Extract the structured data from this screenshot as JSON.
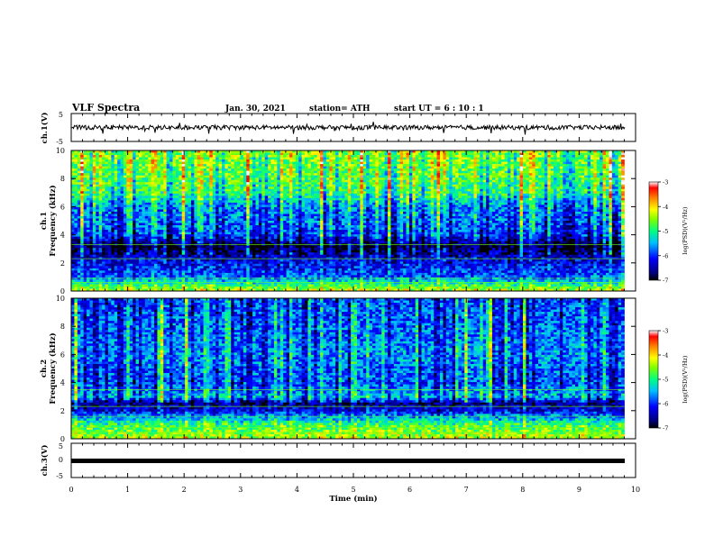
{
  "header": {
    "title": "VLF Spectra",
    "date": "Jan. 30, 2021",
    "station": "station= ATH",
    "start": "start  UT  =   6  : 10 : 1"
  },
  "colors": {
    "spectro_scale": [
      "#000066",
      "#0000c8",
      "#0066ff",
      "#00ccff",
      "#00ff99",
      "#66ff00",
      "#ffff00",
      "#ff9900",
      "#ff0000",
      "#ffffff"
    ]
  },
  "chart_data": [
    {
      "type": "line",
      "name": "ch1-waveform",
      "ylabel": "ch.1(V)",
      "xlim": [
        0,
        10
      ],
      "ylim": [
        -5,
        5
      ],
      "y_ticks": [
        "5",
        "-5"
      ],
      "baseline": 0,
      "note_values": "noisy signal around 0 V with amplitude about 1 V"
    },
    {
      "type": "heatmap",
      "name": "ch1-spectrogram",
      "ylabel_top": "ch.1",
      "ylabel": "Frequency (kHz)",
      "xlim": [
        0,
        10
      ],
      "ylim": [
        0,
        10
      ],
      "y_ticks": [
        "0",
        "2",
        "4",
        "6",
        "8",
        "10"
      ],
      "data_end_min": 9.8,
      "colorbar": {
        "label": "log(PSD)(V²/Hz)",
        "range": [
          -7,
          -3
        ],
        "ticks": [
          "-3",
          "-4",
          "-5",
          "-6",
          "-7"
        ]
      },
      "profile_khz": [
        [
          0,
          -4.2
        ],
        [
          1,
          -5.8
        ],
        [
          2.5,
          -6.4
        ],
        [
          3.2,
          -6.9
        ],
        [
          4,
          -5.9
        ],
        [
          6,
          -5.6
        ],
        [
          7,
          -4.9
        ],
        [
          10,
          -4.5
        ]
      ]
    },
    {
      "type": "heatmap",
      "name": "ch2-spectrogram",
      "ylabel_top": "ch.2",
      "ylabel": "Frequency (kHz)",
      "xlim": [
        0,
        10
      ],
      "ylim": [
        0,
        10
      ],
      "y_ticks": [
        "0",
        "2",
        "4",
        "6",
        "8",
        "10"
      ],
      "data_end_min": 9.8,
      "colorbar": {
        "label": "log(PSD)(V²/Hz)",
        "range": [
          -7,
          -3
        ],
        "ticks": [
          "-3",
          "-4",
          "-5",
          "-6",
          "-7"
        ]
      },
      "profile_khz": [
        [
          0,
          -4.3
        ],
        [
          1,
          -4.8
        ],
        [
          2,
          -6.2
        ],
        [
          2.5,
          -6.6
        ],
        [
          3,
          -5.4
        ],
        [
          4,
          -5.9
        ],
        [
          6,
          -5.6
        ],
        [
          10,
          -5.9
        ]
      ]
    },
    {
      "type": "line",
      "name": "ch3-waveform",
      "ylabel": "ch.3(V)",
      "xlim": [
        0,
        10
      ],
      "ylim": [
        -5,
        5
      ],
      "y_ticks": [
        "5",
        "0",
        "-5"
      ],
      "baseline": -1
    }
  ],
  "x_axis": {
    "label": "Time  (min)",
    "ticks": [
      "0",
      "1",
      "2",
      "3",
      "4",
      "5",
      "6",
      "7",
      "8",
      "9",
      "10"
    ]
  }
}
